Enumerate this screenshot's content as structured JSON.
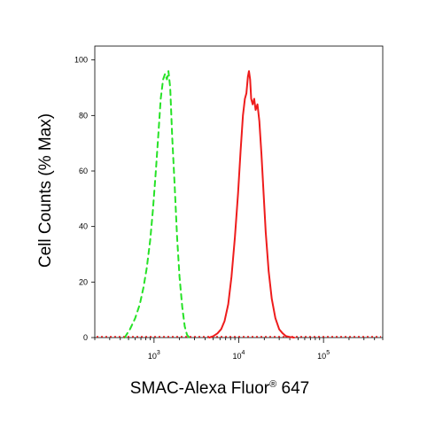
{
  "chart_data": {
    "type": "line",
    "title": "",
    "xlabel": "SMAC-Alexa Fluor",
    "xlabel_super": "®",
    "xlabel_suffix": " 647",
    "ylabel": "Cell Counts (% Max)",
    "x_scale": "log",
    "xlim": [
      200,
      500000
    ],
    "ylim": [
      0,
      105
    ],
    "x_ticks": [
      {
        "value": 1000,
        "base": "10",
        "exp": "3"
      },
      {
        "value": 10000,
        "base": "10",
        "exp": "4"
      },
      {
        "value": 100000,
        "base": "10",
        "exp": "5"
      }
    ],
    "y_ticks": [
      0,
      20,
      40,
      60,
      80,
      100
    ],
    "y_tick_labels": [
      "0",
      "20",
      "40",
      "60",
      "80",
      "100"
    ],
    "grid": false,
    "series": [
      {
        "name": "",
        "color": "#26e226",
        "style": "dashed",
        "x": [
          450,
          520,
          600,
          680,
          750,
          820,
          900,
          970,
          1050,
          1130,
          1200,
          1280,
          1350,
          1420,
          1480,
          1550,
          1640,
          1750,
          1870,
          2000,
          2150,
          2300,
          2450,
          2600
        ],
        "y": [
          0,
          3,
          7,
          12,
          18,
          25,
          35,
          46,
          60,
          74,
          86,
          93,
          95,
          93,
          96,
          90,
          72,
          55,
          36,
          22,
          11,
          4,
          1,
          0
        ]
      },
      {
        "name": "",
        "color": "#ee1c1c",
        "style": "solid",
        "x": [
          4500,
          5000,
          5600,
          6200,
          6800,
          7500,
          8200,
          9000,
          9800,
          10500,
          11200,
          11800,
          12300,
          12800,
          13200,
          13600,
          14000,
          14600,
          15200,
          15800,
          16600,
          17500,
          18500,
          19600,
          20800,
          22500,
          24500,
          27000,
          30000,
          33000,
          36000,
          40000,
          45000
        ],
        "y": [
          0,
          0.5,
          1.5,
          3,
          6,
          12,
          22,
          36,
          52,
          67,
          80,
          86,
          88,
          94,
          96,
          93,
          86,
          84,
          86,
          82,
          84,
          78,
          66,
          52,
          38,
          24,
          14,
          7,
          3,
          1.5,
          0.5,
          0.2,
          0
        ]
      }
    ]
  }
}
